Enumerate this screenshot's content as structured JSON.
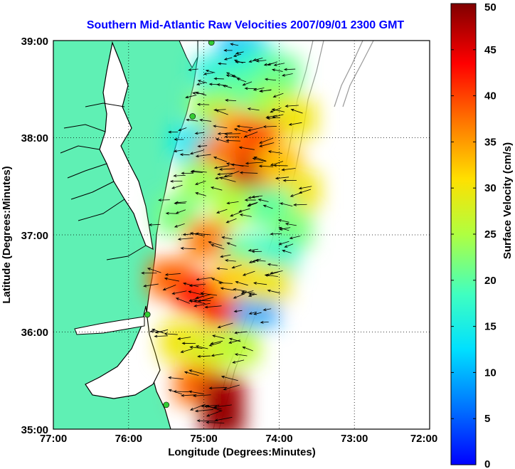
{
  "chart_data": {
    "type": "heatmap",
    "title": "Southern Mid-Atlantic Raw Velocities 2007/09/01 2300 GMT",
    "xlabel": "Longitude (Degrees:Minutes)",
    "ylabel": "Latitude (Degrees:Minutes)",
    "colorbar_label": "Surface Velocity (cm/s)",
    "xlim": [
      -77,
      -72
    ],
    "ylim": [
      35,
      39
    ],
    "x_ticks": [
      {
        "value": -77,
        "label": "77:00"
      },
      {
        "value": -76,
        "label": "76:00"
      },
      {
        "value": -75,
        "label": "75:00"
      },
      {
        "value": -74,
        "label": "74:00"
      },
      {
        "value": -73,
        "label": "73:00"
      },
      {
        "value": -72,
        "label": "72:00"
      }
    ],
    "y_ticks": [
      {
        "value": 35,
        "label": "35:00"
      },
      {
        "value": 36,
        "label": "36:00"
      },
      {
        "value": 37,
        "label": "37:00"
      },
      {
        "value": 38,
        "label": "38:00"
      },
      {
        "value": 39,
        "label": "39:00"
      }
    ],
    "colorbar": {
      "range": [
        0,
        50
      ],
      "ticks": [
        0,
        5,
        10,
        15,
        20,
        25,
        30,
        35,
        40,
        45,
        50
      ],
      "colormap": "jet"
    },
    "grid": "dotted",
    "colors": {
      "land": "#5ff0b4",
      "background": "#ffffff",
      "coast": "#000000",
      "station": "#33cc33",
      "title": "#0000ff"
    },
    "stations": [
      {
        "lon": -74.9,
        "lat": 38.98
      },
      {
        "lon": -75.15,
        "lat": 38.22
      },
      {
        "lon": -75.75,
        "lat": 36.18
      },
      {
        "lon": -75.5,
        "lat": 35.25
      }
    ],
    "velocity_field": [
      {
        "lon": -74.5,
        "lat": 38.88,
        "speed": 10
      },
      {
        "lon": -74.3,
        "lat": 38.75,
        "speed": 17
      },
      {
        "lon": -74.0,
        "lat": 38.65,
        "speed": 21
      },
      {
        "lon": -74.85,
        "lat": 38.65,
        "speed": 16
      },
      {
        "lon": -74.55,
        "lat": 38.5,
        "speed": 20
      },
      {
        "lon": -74.1,
        "lat": 38.35,
        "speed": 24
      },
      {
        "lon": -73.8,
        "lat": 38.2,
        "speed": 30
      },
      {
        "lon": -74.9,
        "lat": 38.3,
        "speed": 24
      },
      {
        "lon": -74.65,
        "lat": 38.1,
        "speed": 34
      },
      {
        "lon": -74.3,
        "lat": 38.0,
        "speed": 40
      },
      {
        "lon": -75.15,
        "lat": 37.95,
        "speed": 14
      },
      {
        "lon": -74.4,
        "lat": 37.62,
        "speed": 47
      },
      {
        "lon": -74.8,
        "lat": 37.78,
        "speed": 38
      },
      {
        "lon": -74.0,
        "lat": 37.72,
        "speed": 33
      },
      {
        "lon": -73.75,
        "lat": 37.45,
        "speed": 30
      },
      {
        "lon": -75.05,
        "lat": 37.55,
        "speed": 24
      },
      {
        "lon": -74.6,
        "lat": 37.3,
        "speed": 25
      },
      {
        "lon": -74.1,
        "lat": 37.28,
        "speed": 20
      },
      {
        "lon": -73.85,
        "lat": 37.05,
        "speed": 22
      },
      {
        "lon": -75.35,
        "lat": 37.2,
        "speed": 22
      },
      {
        "lon": -74.95,
        "lat": 36.95,
        "speed": 37
      },
      {
        "lon": -74.45,
        "lat": 36.8,
        "speed": 20
      },
      {
        "lon": -74.05,
        "lat": 36.75,
        "speed": 17
      },
      {
        "lon": -75.45,
        "lat": 36.55,
        "speed": 38
      },
      {
        "lon": -75.1,
        "lat": 36.4,
        "speed": 42
      },
      {
        "lon": -74.75,
        "lat": 36.25,
        "speed": 44
      },
      {
        "lon": -74.3,
        "lat": 36.25,
        "speed": 9
      },
      {
        "lon": -74.55,
        "lat": 36.55,
        "speed": 32
      },
      {
        "lon": -74.15,
        "lat": 36.5,
        "speed": 30
      },
      {
        "lon": -75.3,
        "lat": 35.9,
        "speed": 30
      },
      {
        "lon": -74.95,
        "lat": 35.8,
        "speed": 28
      },
      {
        "lon": -74.55,
        "lat": 35.85,
        "speed": 26
      },
      {
        "lon": -75.1,
        "lat": 35.45,
        "speed": 38
      },
      {
        "lon": -74.75,
        "lat": 35.35,
        "speed": 48
      },
      {
        "lon": -74.75,
        "lat": 35.12,
        "speed": 49
      }
    ]
  }
}
